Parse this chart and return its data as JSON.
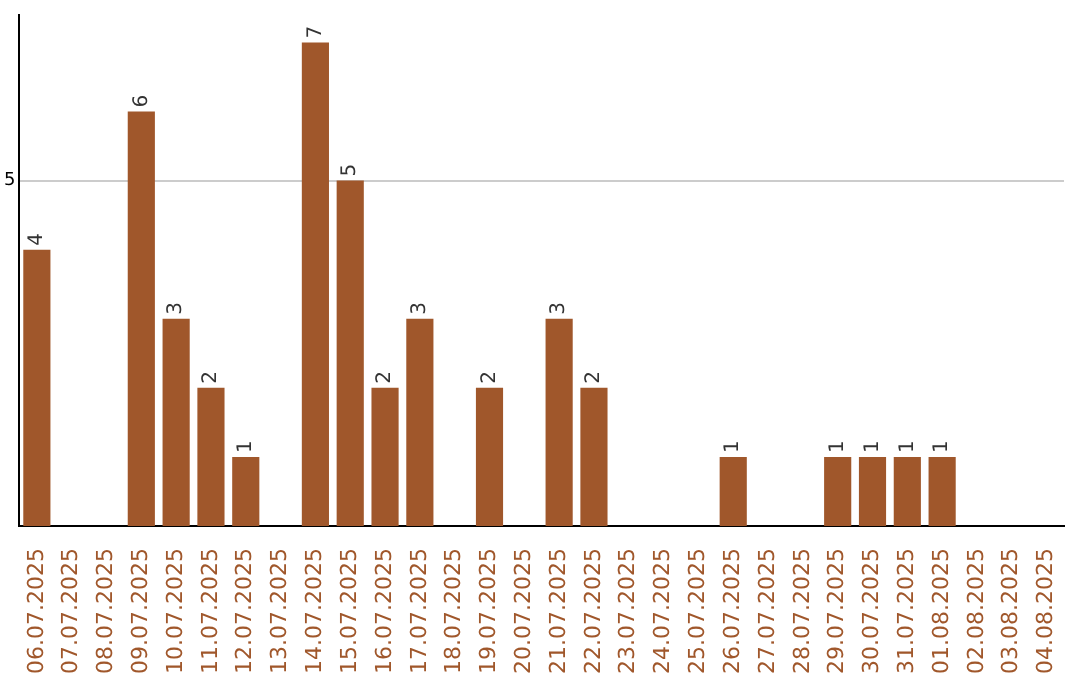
{
  "chart_data": {
    "type": "bar",
    "categories": [
      "06.07.2025",
      "07.07.2025",
      "08.07.2025",
      "09.07.2025",
      "10.07.2025",
      "11.07.2025",
      "12.07.2025",
      "13.07.2025",
      "14.07.2025",
      "15.07.2025",
      "16.07.2025",
      "17.07.2025",
      "18.07.2025",
      "19.07.2025",
      "20.07.2025",
      "21.07.2025",
      "22.07.2025",
      "23.07.2025",
      "24.07.2025",
      "25.07.2025",
      "26.07.2025",
      "27.07.2025",
      "28.07.2025",
      "29.07.2025",
      "30.07.2025",
      "31.07.2025",
      "01.08.2025",
      "02.08.2025",
      "03.08.2025",
      "04.08.2025"
    ],
    "values": [
      4,
      0,
      0,
      6,
      3,
      2,
      1,
      0,
      7,
      5,
      2,
      3,
      0,
      2,
      0,
      3,
      2,
      0,
      0,
      0,
      1,
      0,
      0,
      1,
      1,
      1,
      1,
      0,
      0,
      0
    ],
    "value_labels": [
      "4",
      null,
      null,
      "6",
      "3",
      "2",
      "1",
      null,
      "7",
      "5",
      "2",
      "3",
      null,
      "2",
      null,
      "3",
      "2",
      null,
      null,
      null,
      "1",
      null,
      null,
      "1",
      "1",
      "1",
      "1",
      null,
      null,
      null
    ],
    "color": "#a0572b",
    "ylim": [
      0,
      7.4
    ],
    "yticks": [
      5
    ],
    "grid": "y"
  }
}
